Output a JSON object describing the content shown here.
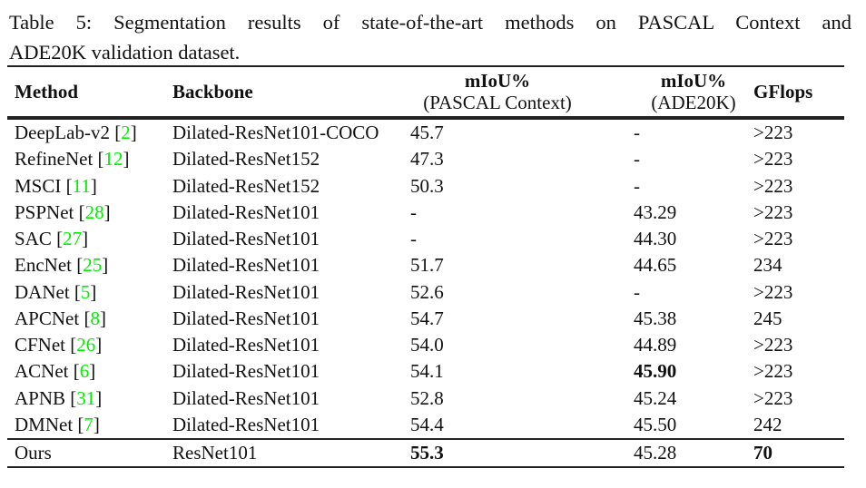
{
  "caption": {
    "line1": "Table 5: Segmentation results of state-of-the-art methods on PASCAL Context and",
    "line2": "ADE20K validation dataset."
  },
  "colors": {
    "citation_green": "#00ee00",
    "text": "#111111"
  },
  "table": {
    "headers": {
      "method": "Method",
      "backbone": "Backbone",
      "miou_pascal_top": "mIoU%",
      "miou_pascal_sub": "(PASCAL Context)",
      "miou_ade_top": "mIoU%",
      "miou_ade_sub": "(ADE20K)",
      "gflops": "GFlops"
    },
    "citation_brackets": [
      "[",
      "]"
    ],
    "rows": [
      {
        "method": "DeepLab-v2",
        "cite": "2",
        "backbone": "Dilated-ResNet101-COCO",
        "miou_pascal": "45.7",
        "miou_ade": "-",
        "gflops": ">223",
        "bold": []
      },
      {
        "method": "RefineNet",
        "cite": "12",
        "backbone": "Dilated-ResNet152",
        "miou_pascal": "47.3",
        "miou_ade": "-",
        "gflops": ">223",
        "bold": []
      },
      {
        "method": "MSCI",
        "cite": "11",
        "backbone": "Dilated-ResNet152",
        "miou_pascal": "50.3",
        "miou_ade": "-",
        "gflops": ">223",
        "bold": []
      },
      {
        "method": "PSPNet",
        "cite": "28",
        "backbone": "Dilated-ResNet101",
        "miou_pascal": "-",
        "miou_ade": "43.29",
        "gflops": ">223",
        "bold": []
      },
      {
        "method": "SAC",
        "cite": "27",
        "backbone": "Dilated-ResNet101",
        "miou_pascal": "-",
        "miou_ade": "44.30",
        "gflops": ">223",
        "bold": []
      },
      {
        "method": "EncNet",
        "cite": "25",
        "backbone": "Dilated-ResNet101",
        "miou_pascal": "51.7",
        "miou_ade": "44.65",
        "gflops": "234",
        "bold": []
      },
      {
        "method": "DANet",
        "cite": "5",
        "backbone": "Dilated-ResNet101",
        "miou_pascal": "52.6",
        "miou_ade": "-",
        "gflops": ">223",
        "bold": []
      },
      {
        "method": "APCNet",
        "cite": "8",
        "backbone": "Dilated-ResNet101",
        "miou_pascal": "54.7",
        "miou_ade": "45.38",
        "gflops": "245",
        "bold": []
      },
      {
        "method": "CFNet",
        "cite": "26",
        "backbone": "Dilated-ResNet101",
        "miou_pascal": "54.0",
        "miou_ade": "44.89",
        "gflops": ">223",
        "bold": []
      },
      {
        "method": "ACNet",
        "cite": "6",
        "backbone": "Dilated-ResNet101",
        "miou_pascal": "54.1",
        "miou_ade": "45.90",
        "gflops": ">223",
        "bold": [
          "miou_ade"
        ]
      },
      {
        "method": "APNB",
        "cite": "31",
        "backbone": "Dilated-ResNet101",
        "miou_pascal": "52.8",
        "miou_ade": "45.24",
        "gflops": ">223",
        "bold": []
      },
      {
        "method": "DMNet",
        "cite": "7",
        "backbone": "Dilated-ResNet101",
        "miou_pascal": "54.4",
        "miou_ade": "45.50",
        "gflops": "242",
        "bold": []
      }
    ],
    "ours": {
      "method": "Ours",
      "cite": null,
      "backbone": "ResNet101",
      "miou_pascal": "55.3",
      "miou_ade": "45.28",
      "gflops": "70",
      "bold": [
        "miou_pascal",
        "gflops"
      ]
    }
  }
}
